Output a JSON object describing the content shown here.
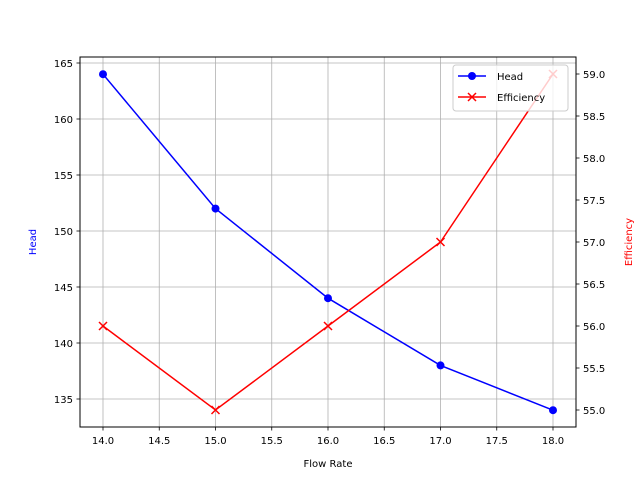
{
  "chart_data": {
    "type": "line",
    "title": "",
    "xlabel": "Flow Rate",
    "ylabel": "Head",
    "ylabel_right": "Efficiency",
    "x": [
      14.0,
      15.0,
      16.0,
      17.0,
      18.0
    ],
    "series": [
      {
        "name": "Head",
        "axis": "left",
        "color": "#0000ff",
        "marker": "circle",
        "values": [
          164,
          152,
          144,
          138,
          134
        ]
      },
      {
        "name": "Efficiency",
        "axis": "right",
        "color": "#ff0000",
        "marker": "x",
        "values": [
          56,
          55,
          56,
          57,
          59
        ]
      }
    ],
    "xlim": [
      13.8,
      18.2
    ],
    "ylim": [
      132.5,
      165.5
    ],
    "ylim_right": [
      54.8,
      59.2
    ],
    "xticks": [
      "14.0",
      "14.5",
      "15.0",
      "15.5",
      "16.0",
      "16.5",
      "17.0",
      "17.5",
      "18.0"
    ],
    "yticks": [
      "135",
      "140",
      "145",
      "150",
      "155",
      "160",
      "165"
    ],
    "yticks_right": [
      "55.0",
      "55.5",
      "56.0",
      "56.5",
      "57.0",
      "57.5",
      "58.0",
      "58.5",
      "59.0"
    ],
    "grid": true,
    "legend_position": "upper right",
    "legend": [
      "Head",
      "Efficiency"
    ]
  }
}
